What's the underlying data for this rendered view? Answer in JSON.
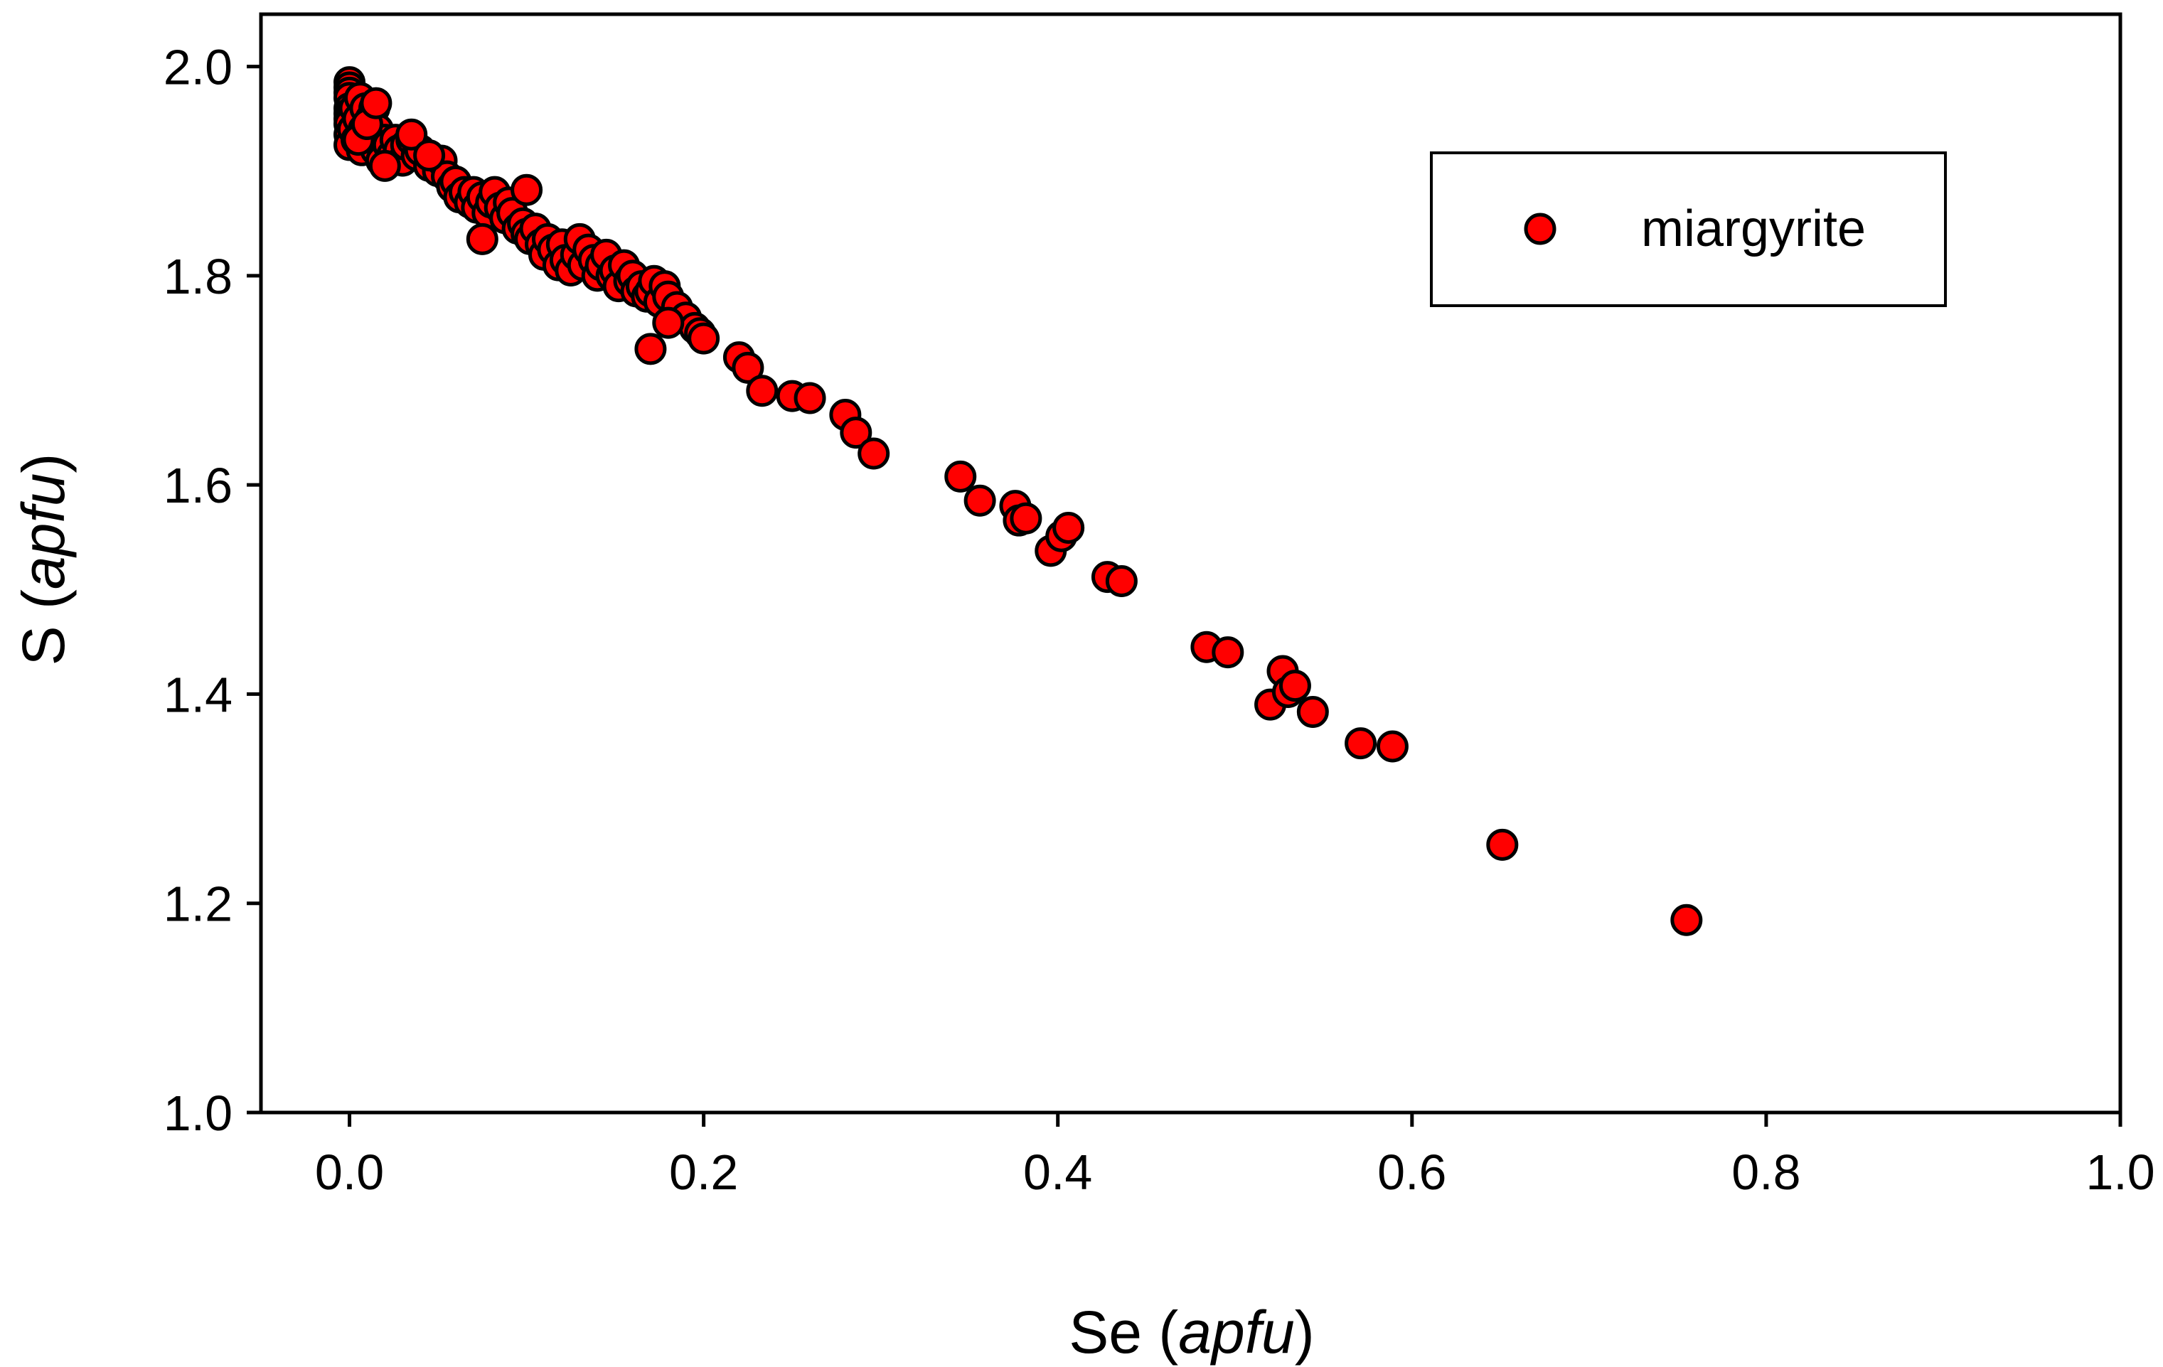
{
  "chart_data": {
    "type": "scatter",
    "title": "",
    "xlabel": {
      "main": "Se (",
      "italic": "apfu",
      "end": ")"
    },
    "ylabel": {
      "main": "S (",
      "italic": "apfu",
      "end": ")"
    },
    "xlim": [
      -0.05,
      1.0
    ],
    "ylim": [
      1.0,
      2.05
    ],
    "xticks": [
      "0.0",
      "0.2",
      "0.4",
      "0.6",
      "0.8",
      "1.0"
    ],
    "yticks": [
      "1.0",
      "1.2",
      "1.4",
      "1.6",
      "1.8",
      "2.0"
    ],
    "grid": false,
    "legend": {
      "position": "top-right",
      "entries": [
        "miargyrite"
      ]
    },
    "series": [
      {
        "name": "miargyrite",
        "color": "#ff0000",
        "edge_color": "#000000",
        "marker": "circle",
        "x": [
          0.0,
          0.0,
          0.0,
          0.0,
          0.0,
          0.0,
          0.0,
          0.0,
          0.0,
          0.0,
          0.002,
          0.003,
          0.004,
          0.005,
          0.006,
          0.007,
          0.008,
          0.009,
          0.01,
          0.012,
          0.014,
          0.015,
          0.016,
          0.018,
          0.02,
          0.022,
          0.024,
          0.026,
          0.028,
          0.03,
          0.032,
          0.035,
          0.038,
          0.04,
          0.045,
          0.05,
          0.052,
          0.055,
          0.058,
          0.06,
          0.062,
          0.065,
          0.068,
          0.07,
          0.072,
          0.075,
          0.078,
          0.08,
          0.082,
          0.085,
          0.088,
          0.09,
          0.092,
          0.095,
          0.098,
          0.1,
          0.102,
          0.105,
          0.108,
          0.11,
          0.112,
          0.115,
          0.118,
          0.12,
          0.122,
          0.125,
          0.128,
          0.13,
          0.132,
          0.135,
          0.138,
          0.14,
          0.142,
          0.145,
          0.148,
          0.15,
          0.152,
          0.155,
          0.158,
          0.16,
          0.162,
          0.165,
          0.168,
          0.17,
          0.172,
          0.175,
          0.178,
          0.18,
          0.185,
          0.19,
          0.195,
          0.198,
          0.2,
          0.005,
          0.01,
          0.015,
          0.02,
          0.035,
          0.045,
          0.075,
          0.1,
          0.17,
          0.18,
          0.22,
          0.225,
          0.233,
          0.25,
          0.26,
          0.28,
          0.286,
          0.296,
          0.345,
          0.356,
          0.376,
          0.378,
          0.382,
          0.396,
          0.402,
          0.406,
          0.428,
          0.436,
          0.484,
          0.496,
          0.52,
          0.527,
          0.53,
          0.534,
          0.544,
          0.571,
          0.589,
          0.651,
          0.755
        ],
        "y": [
          1.985,
          1.98,
          1.975,
          1.97,
          1.96,
          1.955,
          1.95,
          1.945,
          1.935,
          1.925,
          1.94,
          1.96,
          1.93,
          1.95,
          1.97,
          1.92,
          1.94,
          1.96,
          1.93,
          1.95,
          1.96,
          1.92,
          1.94,
          1.91,
          1.93,
          1.925,
          1.915,
          1.93,
          1.92,
          1.91,
          1.925,
          1.93,
          1.915,
          1.92,
          1.905,
          1.9,
          1.91,
          1.895,
          1.885,
          1.89,
          1.875,
          1.88,
          1.87,
          1.88,
          1.865,
          1.875,
          1.86,
          1.87,
          1.88,
          1.865,
          1.855,
          1.87,
          1.86,
          1.845,
          1.85,
          1.84,
          1.835,
          1.845,
          1.83,
          1.82,
          1.835,
          1.825,
          1.81,
          1.83,
          1.815,
          1.805,
          1.82,
          1.835,
          1.81,
          1.825,
          1.815,
          1.8,
          1.81,
          1.82,
          1.8,
          1.805,
          1.79,
          1.81,
          1.795,
          1.8,
          1.785,
          1.79,
          1.78,
          1.785,
          1.795,
          1.775,
          1.79,
          1.78,
          1.77,
          1.76,
          1.75,
          1.745,
          1.74,
          1.93,
          1.945,
          1.965,
          1.905,
          1.935,
          1.915,
          1.835,
          1.882,
          1.73,
          1.755,
          1.722,
          1.712,
          1.69,
          1.685,
          1.683,
          1.667,
          1.65,
          1.63,
          1.608,
          1.585,
          1.58,
          1.566,
          1.568,
          1.537,
          1.551,
          1.559,
          1.512,
          1.508,
          1.445,
          1.44,
          1.39,
          1.422,
          1.402,
          1.408,
          1.383,
          1.353,
          1.35,
          1.256,
          1.184
        ]
      }
    ]
  }
}
